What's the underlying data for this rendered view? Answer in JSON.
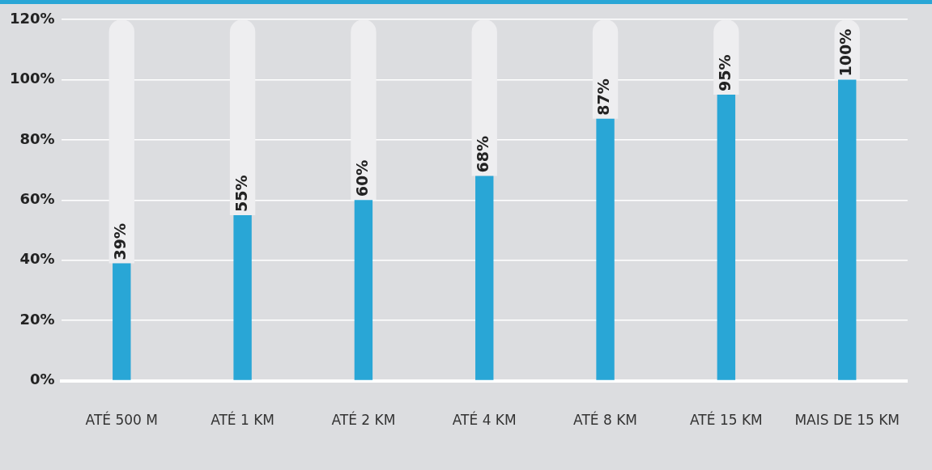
{
  "chart_data": {
    "type": "bar",
    "stacked": true,
    "categories": [
      "ATÉ 500 M",
      "ATÉ 1 KM",
      "ATÉ 2 KM",
      "ATÉ 4 KM",
      "ATÉ 8 KM",
      "ATÉ 15 KM",
      "MAIS DE 15 KM"
    ],
    "series": [
      {
        "color": "#29a6d6",
        "values": [
          39,
          55,
          60,
          68,
          87,
          95,
          100
        ],
        "value_labels": [
          "39%",
          "55%",
          "60%",
          "68%",
          "87%",
          "95%",
          "100%"
        ]
      },
      {
        "color": "#eeeef0",
        "values": [
          81,
          65,
          60,
          52,
          33,
          25,
          20
        ]
      }
    ],
    "ylim": [
      0,
      120
    ],
    "yticks": [
      {
        "value": 0,
        "label": "0%"
      },
      {
        "value": 20,
        "label": "20%"
      },
      {
        "value": 40,
        "label": "40%"
      },
      {
        "value": 60,
        "label": "60%"
      },
      {
        "value": 80,
        "label": "80%"
      },
      {
        "value": 100,
        "label": "100%"
      },
      {
        "value": 120,
        "label": "120%"
      }
    ],
    "grid": "y",
    "legend": false
  }
}
